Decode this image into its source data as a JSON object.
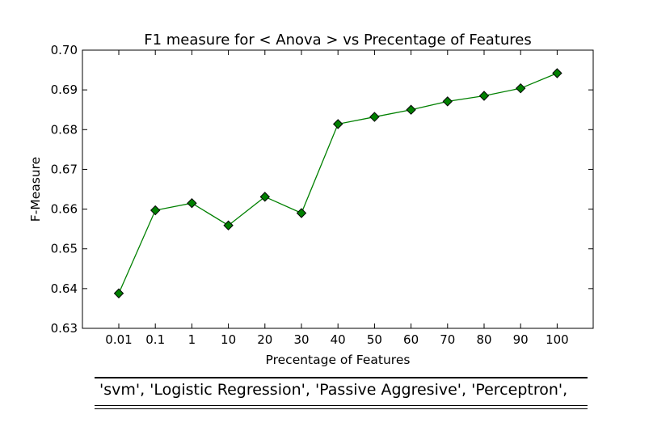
{
  "chart_data": {
    "type": "line",
    "title": "F1 measure for < Anova > vs Precentage of Features",
    "xlabel": "Precentage of Features",
    "ylabel": "F-Measure",
    "categories": [
      "0.01",
      "0.1",
      "1",
      "10",
      "20",
      "30",
      "40",
      "50",
      "60",
      "70",
      "80",
      "90",
      "100"
    ],
    "series": [
      {
        "values": [
          0.6388,
          0.6597,
          0.6615,
          0.6559,
          0.6631,
          0.659,
          0.6814,
          0.6832,
          0.685,
          0.6871,
          0.6885,
          0.6904,
          0.6942
        ],
        "color": "#008000",
        "marker": "diamond"
      }
    ],
    "ylim": [
      0.63,
      0.7
    ],
    "yticks": [
      "0.63",
      "0.64",
      "0.65",
      "0.66",
      "0.67",
      "0.68",
      "0.69",
      "0.70"
    ],
    "grid": false
  },
  "caption": {
    "text": "'svm', 'Logistic Regression', 'Passive Aggresive', 'Perceptron',"
  }
}
